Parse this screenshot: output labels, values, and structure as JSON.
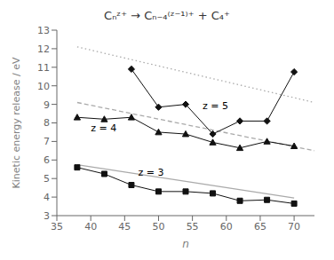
{
  "chart_data": {
    "type": "line",
    "title": "Cₙᶻ⁺ → Cₙ₋₄⁽ᶻ⁻¹⁾⁺ + C₄⁺",
    "xlabel": "n",
    "ylabel": "Kinetic energy release / eV",
    "xlim": [
      35,
      73
    ],
    "ylim": [
      3,
      13
    ],
    "xticks": [
      35,
      40,
      45,
      50,
      55,
      60,
      65,
      70
    ],
    "yticks": [
      3,
      4,
      5,
      6,
      7,
      8,
      9,
      10,
      11,
      12,
      13
    ],
    "grid": false,
    "series": [
      {
        "x": [
          38,
          70
        ],
        "values": [
          5.75,
          3.95
        ],
        "color": "#aaaaaa",
        "line_style": "solid",
        "marker": "none"
      },
      {
        "x": [
          38,
          42,
          46,
          50,
          54,
          58,
          62,
          66,
          70
        ],
        "values": [
          5.6,
          5.25,
          4.65,
          4.3,
          4.3,
          4.2,
          3.8,
          3.85,
          3.65
        ],
        "color": "#111111",
        "line_style": "solid",
        "marker": "square"
      },
      {
        "x": [
          38,
          73
        ],
        "values": [
          9.1,
          6.5
        ],
        "color": "#aaaaaa",
        "line_style": "dashed",
        "marker": "none"
      },
      {
        "x": [
          38,
          42,
          46,
          50,
          54,
          58,
          62,
          66,
          70
        ],
        "values": [
          8.3,
          8.2,
          8.3,
          7.5,
          7.4,
          6.95,
          6.65,
          7.0,
          6.75
        ],
        "color": "#111111",
        "line_style": "solid",
        "marker": "triangle"
      },
      {
        "x": [
          38,
          73
        ],
        "values": [
          12.1,
          9.1
        ],
        "color": "#aaaaaa",
        "line_style": "dotted",
        "marker": "none"
      },
      {
        "x": [
          46,
          50,
          54,
          58,
          62,
          66,
          70
        ],
        "values": [
          10.9,
          8.85,
          9.0,
          7.4,
          8.1,
          8.1,
          10.75
        ],
        "color": "#111111",
        "line_style": "solid",
        "marker": "diamond"
      }
    ],
    "annotations": [
      {
        "text": "z = 3",
        "x": 47,
        "y": 5.15
      },
      {
        "text": "z = 4",
        "x": 40,
        "y": 7.55
      },
      {
        "text": "z = 5",
        "x": 56.5,
        "y": 8.75
      }
    ]
  }
}
